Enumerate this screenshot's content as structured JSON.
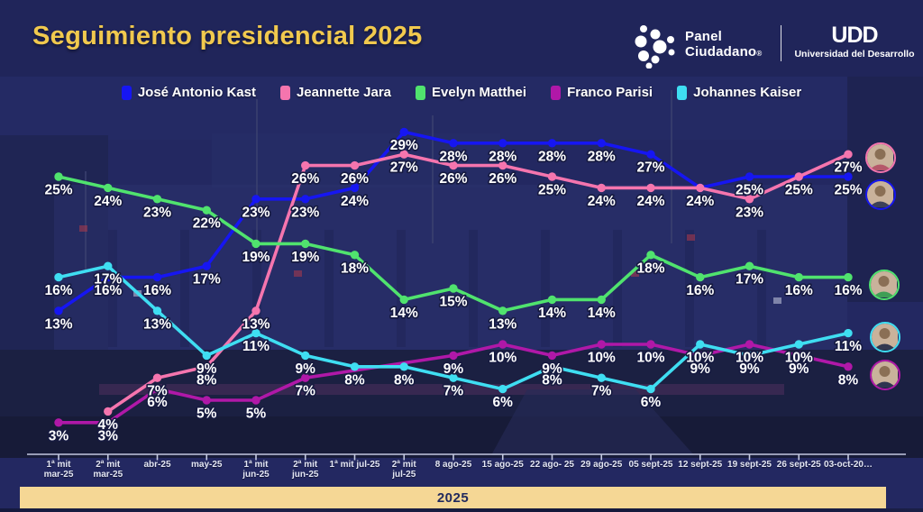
{
  "title": "Seguimiento presidencial 2025",
  "logos": {
    "panel": {
      "line1": "Panel",
      "line2": "Ciudadano",
      "reg": "®"
    },
    "udd": {
      "glyph": "UDD",
      "name": "Universidad del Desarrollo"
    }
  },
  "chart_data": {
    "type": "line",
    "title": "Seguimiento presidencial 2025",
    "legend_position": "top",
    "grid": false,
    "ylim": [
      0,
      31
    ],
    "unit": "%",
    "footer_year": "2025",
    "x_labels": [
      "1ª mit\nmar-25",
      "2ª mit\nmar-25",
      "abr-25",
      "may-25",
      "1ª mit\njun-25",
      "2ª mit\njun-25",
      "1ª mit jul-25",
      "2ª mit\njul-25",
      "8 ago-25",
      "15 ago-25",
      "22 ago- 25",
      "29 ago-25",
      "05 sept-25",
      "12 sept-25",
      "19 sept-25",
      "26 sept-25",
      "03-oct-20…"
    ],
    "series": [
      {
        "name": "José Antonio Kast",
        "color": "#1616f2",
        "values": [
          13,
          16,
          16,
          17,
          23,
          23,
          24,
          29,
          28,
          28,
          28,
          28,
          27,
          24,
          25,
          25,
          25
        ]
      },
      {
        "name": "Jeannette Jara",
        "color": "#f575ae",
        "values": [
          null,
          4,
          7,
          8,
          13,
          26,
          26,
          27,
          26,
          26,
          25,
          24,
          24,
          24,
          23,
          25,
          27
        ]
      },
      {
        "name": "Evelyn Matthei",
        "color": "#50e36e",
        "values": [
          25,
          24,
          23,
          22,
          19,
          19,
          18,
          14,
          15,
          13,
          14,
          14,
          18,
          16,
          17,
          16,
          16
        ]
      },
      {
        "name": "Franco Parisi",
        "color": "#b018a8",
        "values": [
          3,
          3,
          6,
          5,
          5,
          7,
          null,
          null,
          9,
          10,
          9,
          10,
          10,
          9,
          10,
          9,
          8
        ]
      },
      {
        "name": "Johannes Kaiser",
        "color": "#3fdef2",
        "values": [
          16,
          17,
          13,
          9,
          11,
          9,
          8,
          8,
          7,
          6,
          8,
          7,
          6,
          10,
          9,
          10,
          11
        ]
      }
    ]
  }
}
